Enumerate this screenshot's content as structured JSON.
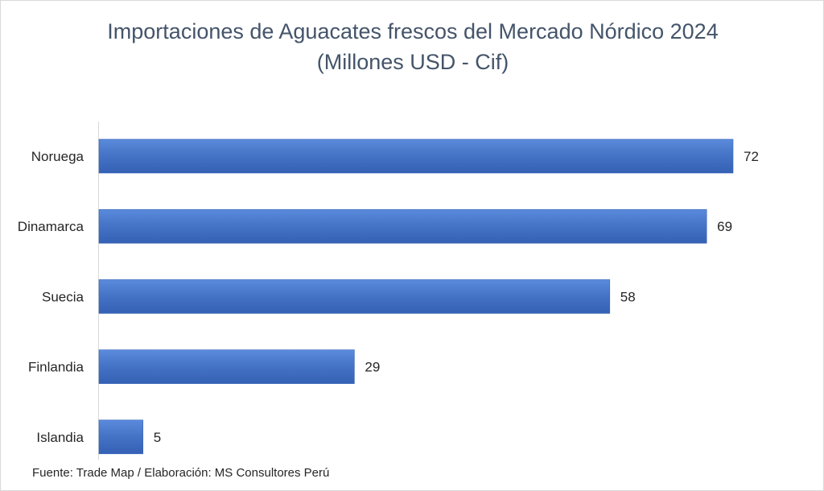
{
  "chart_data": {
    "type": "bar",
    "orientation": "horizontal",
    "title": "Importaciones de Aguacates frescos del Mercado Nórdico 2024",
    "subtitle": "(Millones USD - Cif)",
    "categories": [
      "Noruega",
      "Dinamarca",
      "Suecia",
      "Finlandia",
      "Islandia"
    ],
    "values": [
      72,
      69,
      58,
      29,
      5
    ],
    "xlim": [
      0,
      72
    ],
    "grid": false,
    "legend": "none",
    "bar_color": "#4472c4",
    "bar_color_light": "#5b8bdc",
    "bar_color_dark": "#3561b5",
    "source": "Fuente: Trade Map / Elaboración: MS Consultores Perú"
  }
}
